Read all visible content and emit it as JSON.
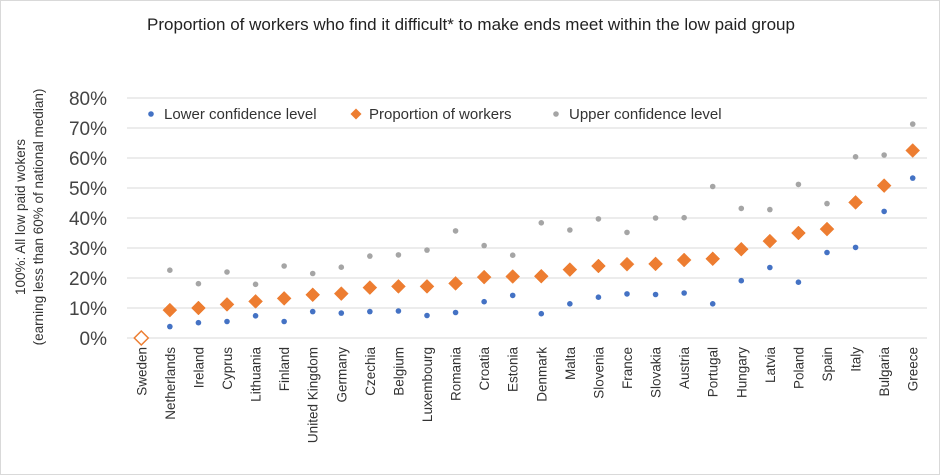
{
  "chart_data": {
    "type": "scatter",
    "title": "Proportion of workers who find it difficult* to make ends meet within the low paid group",
    "ylabel": "100%: All low paid wokers",
    "ylabel2": "(earning less than 60% of national median)",
    "ylim": [
      0,
      80
    ],
    "yticks": [
      "0%",
      "10%",
      "20%",
      "30%",
      "40%",
      "50%",
      "60%",
      "70%",
      "80%"
    ],
    "grid": true,
    "legend_position": "top-left",
    "categories": [
      "Sweden",
      "Netherlands",
      "Ireland",
      "Cyprus",
      "Lithuania",
      "Finland",
      "United Kingdom",
      "Germany",
      "Czechia",
      "Belgium",
      "Luxembourg",
      "Romania",
      "Croatia",
      "Estonia",
      "Denmark",
      "Malta",
      "Slovenia",
      "France",
      "Slovakia",
      "Austria",
      "Portugal",
      "Hungary",
      "Latvia",
      "Poland",
      "Spain",
      "Italy",
      "Bulgaria",
      "Greece"
    ],
    "series": [
      {
        "name": "Lower confidence level",
        "color": "#4472C4",
        "marker": "dot",
        "values": [
          0,
          3.8,
          5.1,
          5.5,
          7.4,
          5.5,
          8.8,
          8.3,
          8.8,
          9.0,
          7.5,
          8.5,
          12.1,
          14.2,
          8.1,
          11.4,
          13.6,
          14.7,
          14.5,
          15.0,
          11.4,
          19.1,
          23.5,
          18.6,
          28.5,
          30.2,
          42.2,
          53.3
        ]
      },
      {
        "name": "Proportion of workers",
        "color": "#ED7D31",
        "marker": "diamond",
        "values": [
          0,
          9.3,
          10.0,
          11.2,
          12.2,
          13.2,
          14.4,
          14.8,
          16.8,
          17.2,
          17.2,
          18.2,
          20.3,
          20.5,
          20.6,
          22.8,
          24.0,
          24.6,
          24.7,
          26.0,
          26.4,
          29.6,
          32.3,
          35.0,
          36.3,
          45.2,
          50.8,
          62.5
        ]
      },
      {
        "name": "Upper confidence level",
        "color": "#A5A5A5",
        "marker": "dot",
        "values": [
          0,
          22.6,
          18.1,
          22.0,
          17.9,
          24.0,
          21.5,
          23.6,
          27.3,
          27.7,
          29.3,
          35.7,
          30.8,
          27.6,
          38.4,
          36.0,
          39.7,
          35.2,
          40.0,
          40.1,
          50.5,
          43.2,
          42.8,
          51.2,
          44.8,
          60.4,
          61.0,
          71.3
        ]
      }
    ]
  }
}
